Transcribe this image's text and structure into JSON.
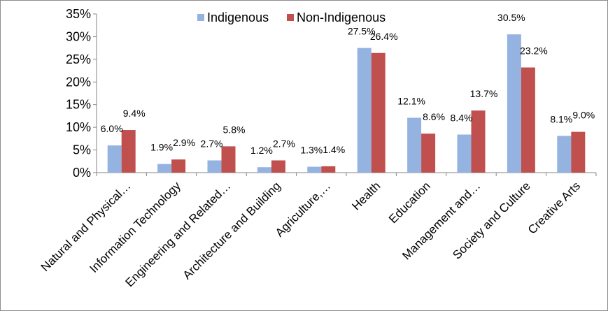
{
  "chart_data": {
    "type": "bar",
    "title": "",
    "xlabel": "",
    "ylabel": "",
    "ylim": [
      0,
      35
    ],
    "y_tick_values": [
      0,
      5,
      10,
      15,
      20,
      25,
      30,
      35
    ],
    "y_tick_labels": [
      "0%",
      "5%",
      "10%",
      "15%",
      "20%",
      "25%",
      "30%",
      "35%"
    ],
    "grid": false,
    "legend_position": "top",
    "categories": [
      "Natural and Physical…",
      "Information Technology",
      "Engineering and Related…",
      "Architecture and Building",
      "Agriculture,…",
      "Health",
      "Education",
      "Management and…",
      "Society and Culture",
      "Creative Arts"
    ],
    "series": [
      {
        "name": "Indigenous",
        "color": "#95B3E1",
        "values": [
          6.0,
          1.9,
          2.7,
          1.2,
          1.3,
          27.5,
          12.1,
          8.4,
          30.5,
          8.1
        ],
        "labels": [
          "6.0%",
          "1.9%",
          "2.7%",
          "1.2%",
          "1.3%",
          "27.5%",
          "12.1%",
          "8.4%",
          "30.5%",
          "8.1%"
        ]
      },
      {
        "name": "Non-Indigenous",
        "color": "#C0504D",
        "values": [
          9.4,
          2.9,
          5.8,
          2.7,
          1.4,
          26.4,
          8.6,
          13.7,
          23.2,
          9.0
        ],
        "labels": [
          "9.4%",
          "2.9%",
          "5.8%",
          "2.7%",
          "1.4%",
          "26.4%",
          "8.6%",
          "13.7%",
          "23.2%",
          "9.0%"
        ]
      }
    ]
  }
}
